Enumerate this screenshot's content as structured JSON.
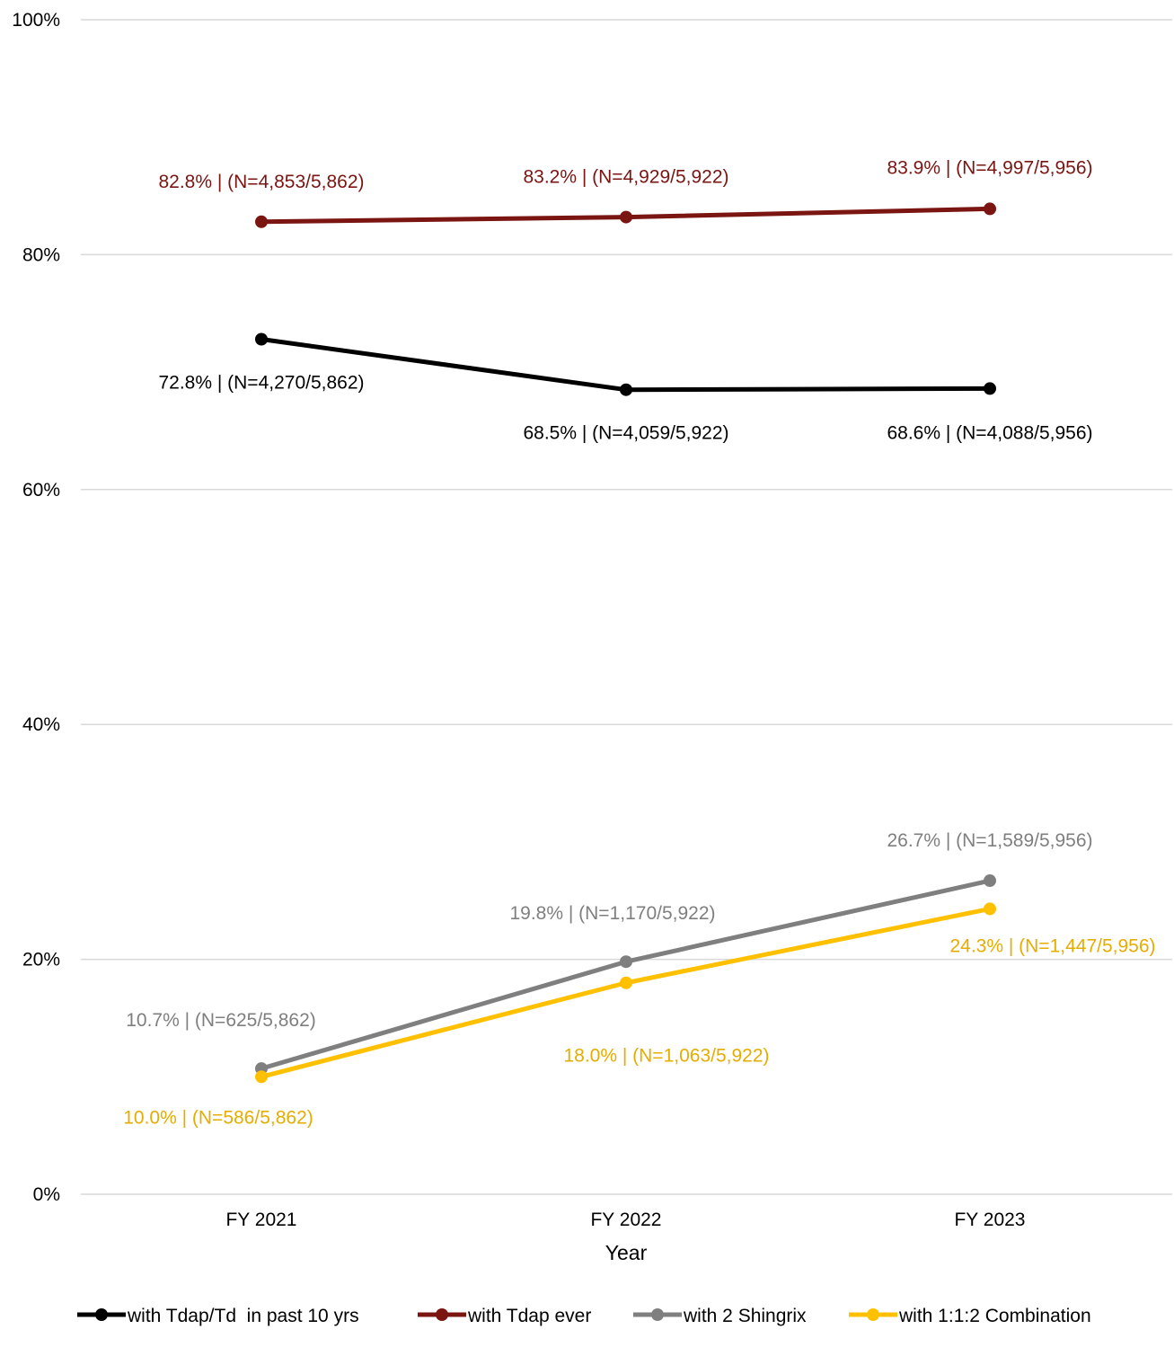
{
  "chart_data": {
    "type": "line",
    "title": "",
    "xlabel": "Year",
    "ylabel": "",
    "categories": [
      "FY 2021",
      "FY 2022",
      "FY 2023"
    ],
    "y_ticks": [
      "0%",
      "20%",
      "40%",
      "60%",
      "80%",
      "100%"
    ],
    "ylim": [
      0,
      100
    ],
    "grid": "horizontal",
    "legend": "bottom",
    "series": [
      {
        "name": "with Tdap/Td  in past 10 yrs",
        "color": "#000000",
        "values": [
          72.8,
          68.5,
          68.6
        ],
        "labels": [
          "72.8% | (N=4,270/5,862)",
          "68.5% | (N=4,059/5,922)",
          "68.6% | (N=4,088/5,956)"
        ]
      },
      {
        "name": "with Tdap ever",
        "color": "#7a1512",
        "values": [
          82.8,
          83.2,
          83.9
        ],
        "labels": [
          "82.8% | (N=4,853/5,862)",
          "83.2% | (N=4,929/5,922)",
          "83.9% | (N=4,997/5,956)"
        ]
      },
      {
        "name": "with 2 Shingrix",
        "color": "#7f7f7f",
        "values": [
          10.7,
          19.8,
          26.7
        ],
        "labels": [
          "10.7% | (N=625/5,862)",
          "19.8% | (N=1,170/5,922)",
          "26.7% | (N=1,589/5,956)"
        ]
      },
      {
        "name": "with 1:1:2 Combination",
        "color": "#ffc000",
        "label_color": "#e6ac00",
        "values": [
          10.0,
          18.0,
          24.3
        ],
        "labels": [
          "10.0% | (N=586/5,862)",
          "18.0% | (N=1,063/5,922)",
          "24.3% | (N=1,447/5,956)"
        ]
      }
    ]
  }
}
